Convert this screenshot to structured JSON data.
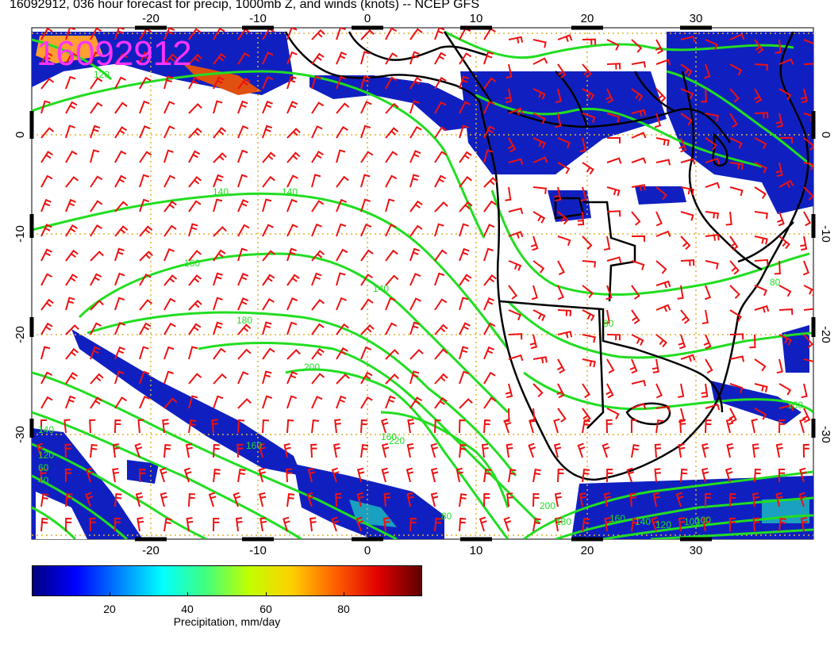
{
  "title": "16092912, 036 hour forecast for precip, 1000mb Z, and winds (knots) -- NCEP GFS",
  "stamp": "16092912",
  "colors": {
    "contour": "#22dd22",
    "barb": "#ee1111",
    "coast": "#000000",
    "grid": "#e0b030",
    "stamp": "#ff33ff"
  },
  "axes": {
    "lon_ticks": [
      "-20",
      "-10",
      "0",
      "10",
      "20",
      "30"
    ],
    "lat_ticks": [
      "0",
      "-10",
      "-20",
      "-30"
    ],
    "lon_range": [
      -30,
      40
    ],
    "lat_range": [
      -40,
      10
    ]
  },
  "contour_labels": [
    "120",
    "140",
    "140",
    "160",
    "140",
    "180",
    "160",
    "140",
    "120",
    "200",
    "160",
    "80",
    "60",
    "220",
    "80",
    "40",
    "200",
    "180",
    "160",
    "140",
    "120",
    "100",
    "160",
    "80",
    "100"
  ],
  "colorbar": {
    "ticks": [
      "20",
      "40",
      "60",
      "80"
    ],
    "tick_values": [
      20,
      40,
      60,
      80
    ],
    "range": [
      0,
      100
    ],
    "title": "Precipitation, mm/day",
    "gradient": [
      "#000080",
      "#0000ff",
      "#0080ff",
      "#00ffff",
      "#40ff80",
      "#c0ff00",
      "#ffd000",
      "#ff6000",
      "#e00000",
      "#600000"
    ]
  },
  "legend_icons": {
    "barbs": "wind-barb-icon",
    "precip": "precip-blob-icon"
  }
}
